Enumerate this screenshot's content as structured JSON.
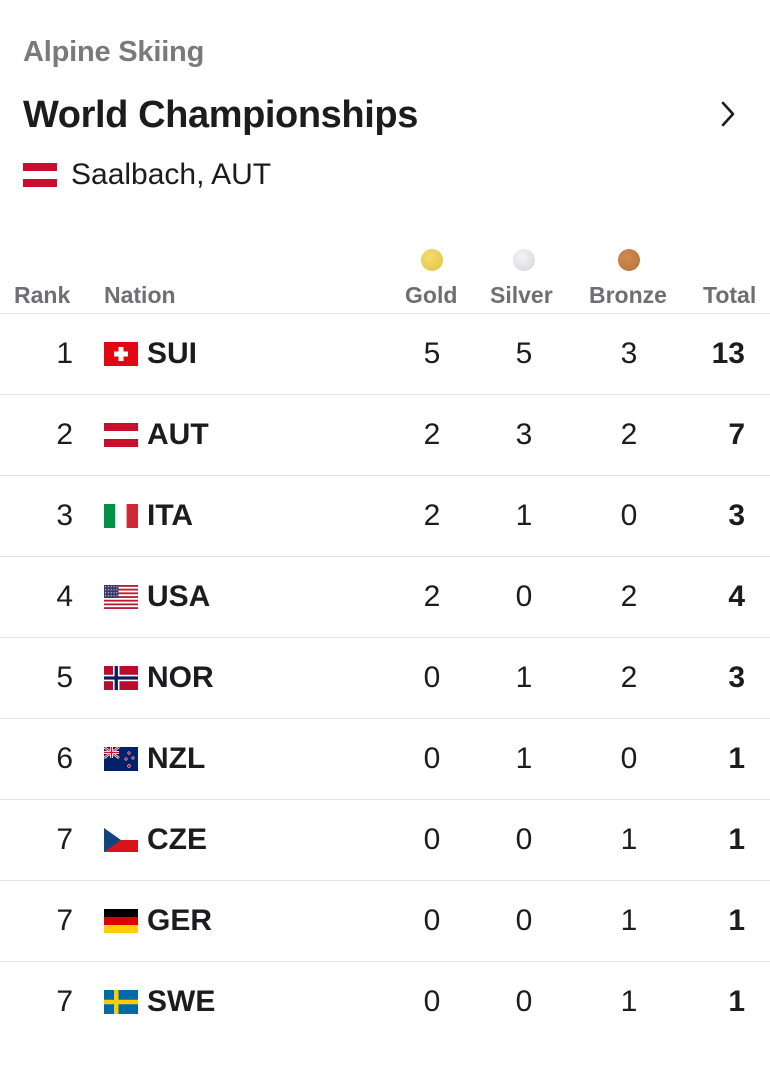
{
  "header": {
    "sport": "Alpine Skiing",
    "title": "World Championships",
    "location": "Saalbach, AUT",
    "location_flag": "AUT"
  },
  "columns": {
    "rank": "Rank",
    "nation": "Nation",
    "gold": "Gold",
    "silver": "Silver",
    "bronze": "Bronze",
    "total": "Total"
  },
  "medal_colors": {
    "gold": "#e2c13d",
    "silver": "#d4d4d8",
    "bronze": "#b8733a"
  },
  "rows": [
    {
      "rank": "1",
      "nation": "SUI",
      "gold": "5",
      "silver": "5",
      "bronze": "3",
      "total": "13"
    },
    {
      "rank": "2",
      "nation": "AUT",
      "gold": "2",
      "silver": "3",
      "bronze": "2",
      "total": "7"
    },
    {
      "rank": "3",
      "nation": "ITA",
      "gold": "2",
      "silver": "1",
      "bronze": "0",
      "total": "3"
    },
    {
      "rank": "4",
      "nation": "USA",
      "gold": "2",
      "silver": "0",
      "bronze": "2",
      "total": "4"
    },
    {
      "rank": "5",
      "nation": "NOR",
      "gold": "0",
      "silver": "1",
      "bronze": "2",
      "total": "3"
    },
    {
      "rank": "6",
      "nation": "NZL",
      "gold": "0",
      "silver": "1",
      "bronze": "0",
      "total": "1"
    },
    {
      "rank": "7",
      "nation": "CZE",
      "gold": "0",
      "silver": "0",
      "bronze": "1",
      "total": "1"
    },
    {
      "rank": "7",
      "nation": "GER",
      "gold": "0",
      "silver": "0",
      "bronze": "1",
      "total": "1"
    },
    {
      "rank": "7",
      "nation": "SWE",
      "gold": "0",
      "silver": "0",
      "bronze": "1",
      "total": "1"
    }
  ]
}
